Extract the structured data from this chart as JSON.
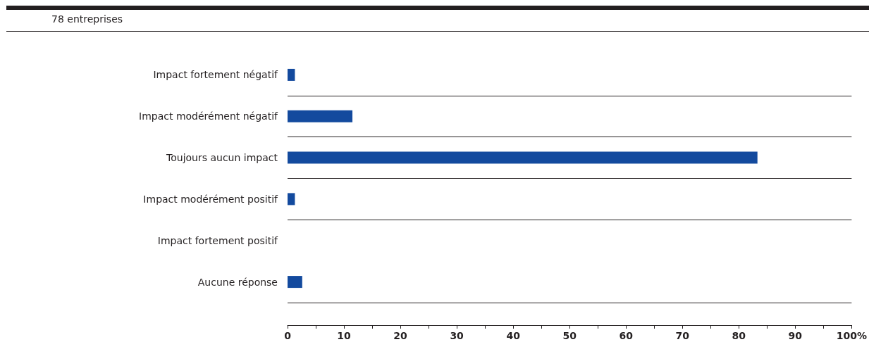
{
  "chart_data": {
    "type": "bar",
    "orientation": "horizontal",
    "subtitle": "78 entreprises",
    "categories": [
      "Impact fortement négatif",
      "Impact modérément négatif",
      "Toujours aucun impact",
      "Impact modérément positif",
      "Impact fortement positif",
      "Aucune réponse"
    ],
    "values": [
      1.3,
      11.5,
      83.3,
      1.3,
      0,
      2.6
    ],
    "color": "#134a9e",
    "xlim": [
      0,
      100
    ],
    "xticks": [
      0,
      {
        "value": 5,
        "label": null
      },
      10,
      {
        "value": 15,
        "label": null
      },
      20,
      {
        "value": 25,
        "label": null
      },
      30,
      {
        "value": 35,
        "label": null
      },
      40,
      {
        "value": 45,
        "label": null
      },
      50,
      {
        "value": 55,
        "label": null
      },
      60,
      {
        "value": 65,
        "label": null
      },
      70,
      {
        "value": 75,
        "label": null
      },
      80,
      {
        "value": 85,
        "label": null
      },
      90,
      {
        "value": 95,
        "label": null
      },
      {
        "value": 100,
        "label": "100%"
      }
    ],
    "grid": "y"
  }
}
